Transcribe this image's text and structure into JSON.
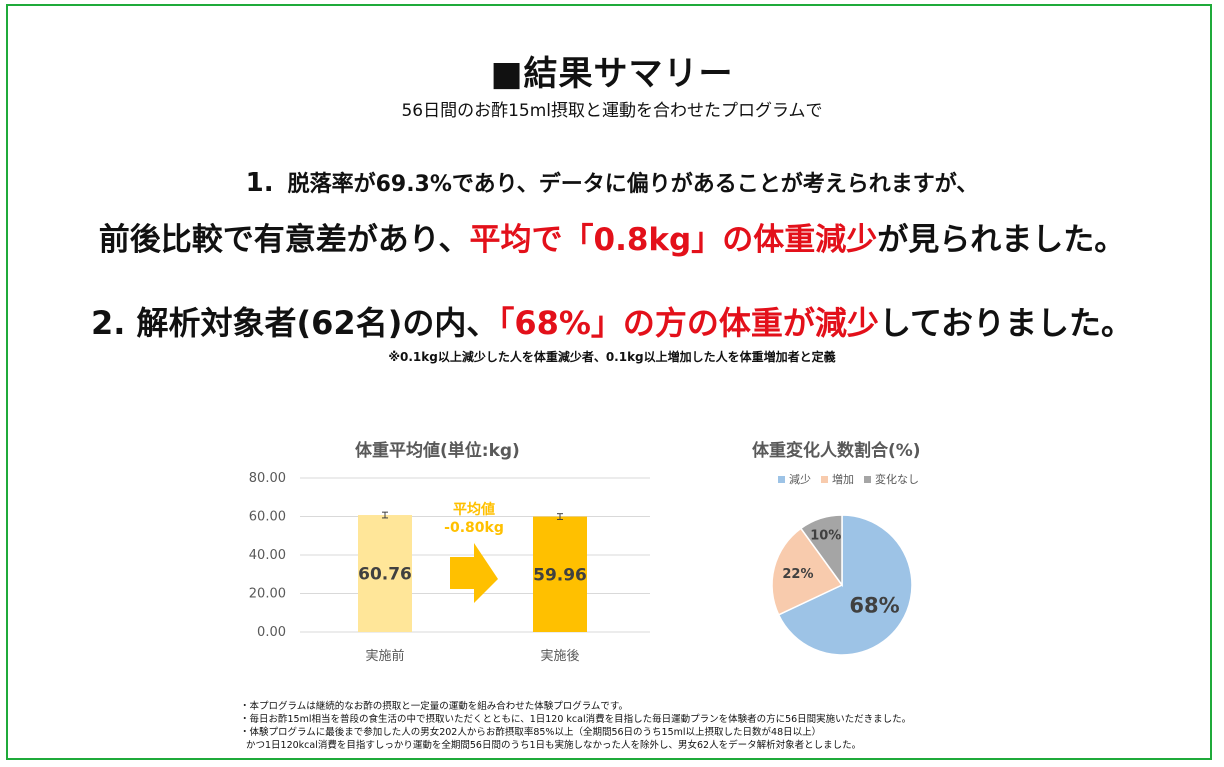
{
  "header": {
    "title": "■結果サマリー",
    "subtitle": "56日間のお酢15ml摂取と運動を合わせたプログラムで"
  },
  "point1": {
    "number": "1.",
    "line1": "脱落率が69.3%であり、データに偏りがあることが考えられますが、",
    "line2_pre": "前後比較で有意差があり、",
    "line2_red": "平均で「0.8kg」の体重減少",
    "line2_post": "が見られました。"
  },
  "point2": {
    "pre": "2. 解析対象者(62名)の内、",
    "red": "「68%」の方の体重が減少",
    "post": "しておりました。"
  },
  "note": "※0.1kg以上減少した人を体重減少者、0.1kg以上増加した人を体重増加者と定義",
  "bar_chart_labels": {
    "title": "体重平均値(単位:kg)",
    "arrow_label_1": "平均値",
    "arrow_label_2": "-0.80kg",
    "ticks": [
      "0.00",
      "20.00",
      "40.00",
      "60.00",
      "80.00"
    ],
    "value_labels": [
      "60.76",
      "59.96"
    ]
  },
  "pie_chart_labels": {
    "title": "体重変化人数割合(%)",
    "legend": [
      "減少",
      "増加",
      "変化なし"
    ],
    "slice_labels": [
      "68%",
      "22%",
      "10%"
    ]
  },
  "chart_data": [
    {
      "type": "bar",
      "title": "体重平均値(単位:kg)",
      "categories": [
        "実施前",
        "実施後"
      ],
      "values": [
        60.76,
        59.96
      ],
      "error": [
        1.5,
        1.5
      ],
      "ylim": [
        0,
        80
      ],
      "yticks": [
        0,
        20,
        40,
        60,
        80
      ],
      "colors": [
        "#ffe699",
        "#ffc000"
      ],
      "grid": true
    },
    {
      "type": "pie",
      "title": "体重変化人数割合(%)",
      "categories": [
        "減少",
        "増加",
        "変化なし"
      ],
      "values": [
        68,
        22,
        10
      ],
      "colors": [
        "#9dc3e6",
        "#f8cbad",
        "#a5a5a5"
      ],
      "legend": "top"
    }
  ],
  "footnotes": [
    "・本プログラムは継続的なお酢の摂取と一定量の運動を組み合わせた体験プログラムです。",
    "・毎日お酢15ml相当を普段の食生活の中で摂取いただくとともに、1日120 kcal消費を目指した毎日運動プランを体験者の方に56日間実施いただきました。",
    "・体験プログラムに最後まで参加した人の男女202人からお酢摂取率85%以上（全期間56日のうち15ml以上摂取した日数が48日以上）",
    "かつ1日120kcal消費を目指すしっかり運動を全期間56日間のうち1日も実施しなかった人を除外し、男女62人をデータ解析対象者としました。"
  ]
}
